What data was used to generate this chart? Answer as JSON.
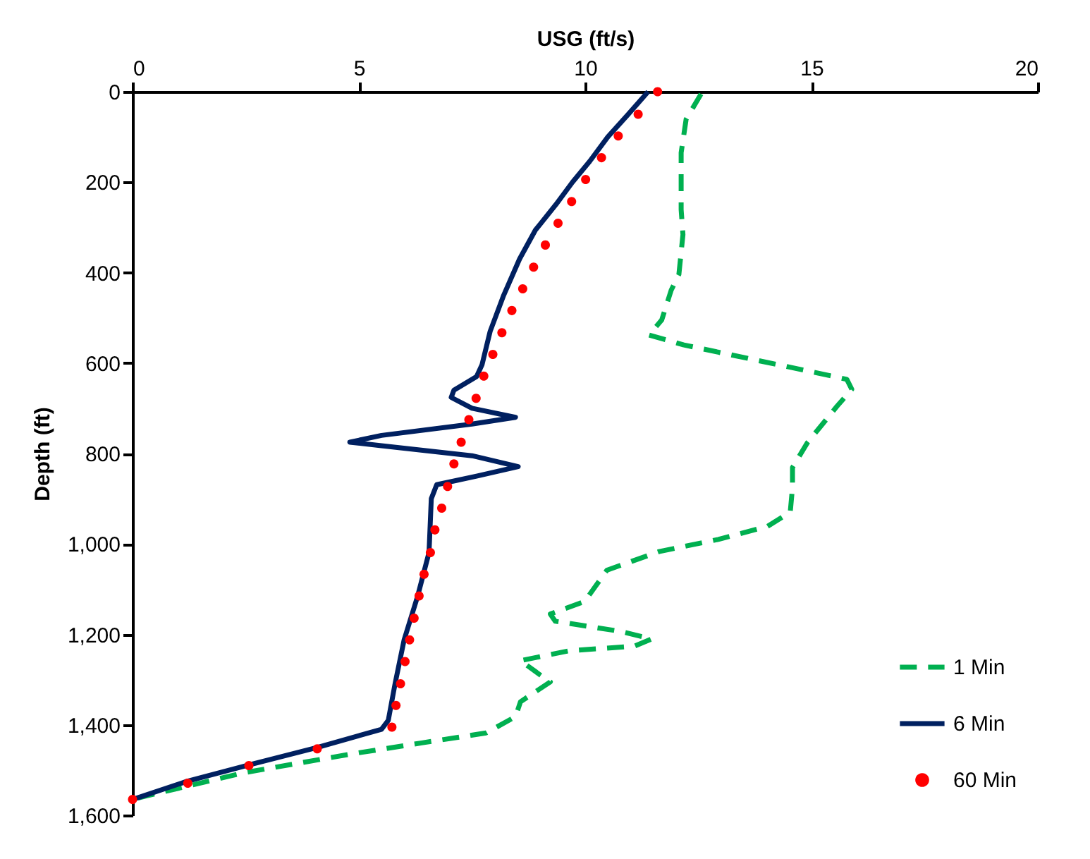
{
  "chart_data": {
    "type": "line",
    "xlabel": "USG (ft/s)",
    "ylabel": "Depth (ft)",
    "xlim": [
      0,
      20
    ],
    "xticks": [
      0,
      5,
      10,
      15,
      20
    ],
    "ylim": [
      1600,
      0
    ],
    "yticks": [
      0,
      200,
      400,
      600,
      800,
      {
        "value": 1000,
        "label": "1,000"
      },
      {
        "value": 1200,
        "label": "1,200"
      },
      {
        "value": 1400,
        "label": "1,400"
      },
      {
        "value": 1600,
        "label": "1,600"
      }
    ],
    "grid": false,
    "legend": "bottom right",
    "series": [
      {
        "name": "1 Min",
        "line_style": "dashed",
        "color": "#00b050",
        "x": [
          12.56,
          12.23,
          12.12,
          12.12,
          12.16,
          12.07,
          11.9,
          11.69,
          11.41,
          12.18,
          15.13,
          15.78,
          15.89,
          15.56,
          14.91,
          14.58,
          14.58,
          14.53,
          14.03,
          12.94,
          11.63,
          10.48,
          9.99,
          9.23,
          9.34,
          10.76,
          11.47,
          11.09,
          9.66,
          8.57,
          9.01,
          9.23,
          8.57,
          8.46,
          7.81,
          6.39,
          4.86,
          2.46,
          0.27,
          0
        ],
        "values": [
          5,
          61,
          135,
          261,
          316,
          404,
          439,
          505,
          538,
          560,
          622,
          636,
          658,
          696,
          776,
          831,
          875,
          930,
          961,
          990,
          1017,
          1058,
          1127,
          1155,
          1171,
          1193,
          1210,
          1226,
          1236,
          1258,
          1290,
          1305,
          1349,
          1382,
          1418,
          1440,
          1464,
          1506,
          1558,
          1565
        ]
      },
      {
        "name": "6 Min",
        "line_style": "solid",
        "color": "#002060",
        "x": [
          11.39,
          10.95,
          10.5,
          10.1,
          9.72,
          9.35,
          8.9,
          8.55,
          8.2,
          7.9,
          7.72,
          7.6,
          7.1,
          7.04,
          7.5,
          8.46,
          7.5,
          5.5,
          4.8,
          5.5,
          7.5,
          8.52,
          7.6,
          6.72,
          6.6,
          6.55,
          6.3,
          6.0,
          5.8,
          5.65,
          5.5,
          4.08,
          2.6,
          1.2,
          0
        ],
        "values": [
          0,
          50,
          100,
          154,
          200,
          250,
          306,
          370,
          450,
          530,
          604,
          630,
          660,
          676,
          700,
          720,
          735,
          760,
          775,
          783,
          805,
          829,
          850,
          869,
          900,
          1019,
          1115,
          1212,
          1309,
          1390,
          1410,
          1450,
          1488,
          1525,
          1565
        ]
      },
      {
        "name": "60 Min",
        "type": "scatter",
        "marker": "circle",
        "color": "#ff0000",
        "x": [
          11.6,
          11.17,
          10.73,
          10.36,
          10.01,
          9.7,
          9.4,
          9.12,
          8.86,
          8.62,
          8.38,
          8.16,
          7.96,
          7.76,
          7.59,
          7.43,
          7.26,
          7.1,
          6.96,
          6.83,
          6.68,
          6.58,
          6.44,
          6.33,
          6.22,
          6.12,
          6.02,
          5.92,
          5.82,
          5.73,
          4.08,
          2.57,
          1.22,
          0
        ],
        "values": [
          0,
          50,
          98,
          146,
          194,
          243,
          291,
          339,
          388,
          436,
          484,
          533,
          581,
          629,
          678,
          725,
          775,
          823,
          873,
          921,
          969,
          1019,
          1067,
          1115,
          1164,
          1212,
          1260,
          1309,
          1357,
          1405,
          1453,
          1490,
          1529,
          1565
        ]
      }
    ]
  }
}
